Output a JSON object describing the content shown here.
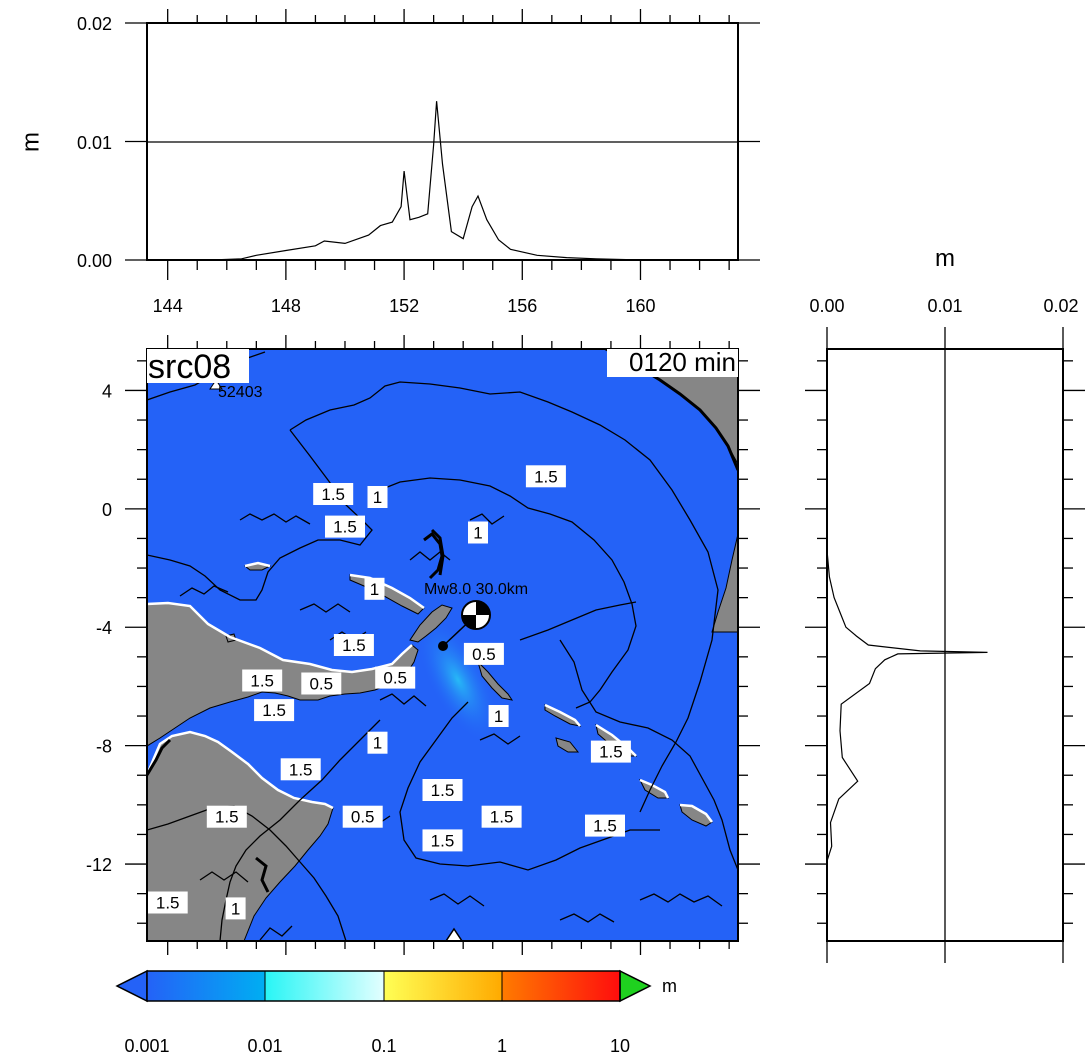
{
  "top_panel": {
    "ylabel": "m",
    "y_ticks": [
      "0.00",
      "0.01",
      "0.02"
    ],
    "ylim": [
      0,
      0.02
    ],
    "x_ticks": [
      "144",
      "148",
      "152",
      "156",
      "160"
    ],
    "xlim": [
      143.3,
      163.3
    ]
  },
  "right_panel": {
    "xlabel": "m",
    "x_ticks": [
      "0.00",
      "0.01",
      "0.02"
    ],
    "xlim": [
      0,
      0.02
    ]
  },
  "map": {
    "source_label": "src08",
    "time_label": "0120 min",
    "station_label": "52403",
    "epicenter_label": "Mw8.0  30.0km",
    "y_ticks": [
      "4",
      "0",
      "-4",
      "-8",
      "-12"
    ],
    "xlim": [
      143.3,
      163.3
    ],
    "ylim": [
      -14.6,
      5.4
    ],
    "ocean_color": "#2462f7",
    "land_color": "#868686",
    "contour_labels": [
      {
        "text": "1.5",
        "lon": 156.8,
        "lat": 1.1
      },
      {
        "text": "1.5",
        "lon": 149.6,
        "lat": 0.5
      },
      {
        "text": "1.5",
        "lon": 150.0,
        "lat": -0.6
      },
      {
        "text": "1",
        "lon": 151.1,
        "lat": 0.4
      },
      {
        "text": "1",
        "lon": 154.5,
        "lat": -0.8
      },
      {
        "text": "1",
        "lon": 151.0,
        "lat": -2.7
      },
      {
        "text": "1.5",
        "lon": 150.3,
        "lat": -4.6
      },
      {
        "text": "0.5",
        "lon": 154.7,
        "lat": -4.9
      },
      {
        "text": "1.5",
        "lon": 147.2,
        "lat": -5.8
      },
      {
        "text": "0.5",
        "lon": 149.2,
        "lat": -5.9
      },
      {
        "text": "0.5",
        "lon": 151.7,
        "lat": -5.7
      },
      {
        "text": "1.5",
        "lon": 147.6,
        "lat": -6.8
      },
      {
        "text": "1",
        "lon": 155.2,
        "lat": -7.0
      },
      {
        "text": "1.5",
        "lon": 159.0,
        "lat": -8.2
      },
      {
        "text": "1",
        "lon": 151.1,
        "lat": -7.9
      },
      {
        "text": "1.5",
        "lon": 148.5,
        "lat": -8.8
      },
      {
        "text": "1.5",
        "lon": 153.3,
        "lat": -9.5
      },
      {
        "text": "0.5",
        "lon": 150.6,
        "lat": -10.4
      },
      {
        "text": "1.5",
        "lon": 155.3,
        "lat": -10.4
      },
      {
        "text": "1.5",
        "lon": 146.0,
        "lat": -10.4
      },
      {
        "text": "1.5",
        "lon": 153.3,
        "lat": -11.2
      },
      {
        "text": "1.5",
        "lon": 158.8,
        "lat": -10.7
      },
      {
        "text": "1.5",
        "lon": 144.0,
        "lat": -13.3
      },
      {
        "text": "1",
        "lon": 146.3,
        "lat": -13.5
      }
    ]
  },
  "colorbar": {
    "unit": "m",
    "tick_labels": [
      "0.001",
      "0.01",
      "0.1",
      "1",
      "10"
    ],
    "segments": [
      {
        "from": "#2462f7",
        "to": "#00aef2"
      },
      {
        "from": "#28f5f5",
        "to": "#e3ffff"
      },
      {
        "from": "#ffff55",
        "to": "#ffaa00"
      },
      {
        "from": "#ff7b00",
        "to": "#ff0d0d"
      }
    ],
    "under_color": "#2462f7",
    "over_color": "#1fd11f"
  },
  "chart_data": {
    "type": "line",
    "top_series": {
      "x": [
        143.3,
        145.5,
        146.5,
        147.0,
        148.0,
        149.0,
        149.3,
        150.0,
        150.8,
        151.2,
        151.6,
        151.9,
        152.0,
        152.2,
        152.5,
        152.8,
        153.0,
        153.1,
        153.3,
        153.6,
        154.0,
        154.3,
        154.5,
        154.8,
        155.2,
        155.6,
        156.5,
        157.5,
        158.5,
        160.0,
        163.3
      ],
      "y": [
        0.0,
        0.0,
        0.0001,
        0.0004,
        0.0008,
        0.0012,
        0.0016,
        0.0014,
        0.0021,
        0.0029,
        0.0032,
        0.0045,
        0.0075,
        0.0034,
        0.0036,
        0.0039,
        0.0097,
        0.0134,
        0.0081,
        0.0024,
        0.0018,
        0.0045,
        0.0054,
        0.0034,
        0.0017,
        0.0009,
        0.0004,
        0.0002,
        0.0001,
        0.0,
        0.0
      ]
    },
    "right_series": {
      "lat": [
        5.4,
        -1.4,
        -2.3,
        -3.0,
        -3.5,
        -4.0,
        -4.3,
        -4.6,
        -4.8,
        -4.85,
        -4.9,
        -5.1,
        -5.4,
        -5.9,
        -6.6,
        -7.5,
        -8.4,
        -9.2,
        -9.8,
        -10.6,
        -11.4,
        -11.9,
        -14.6
      ],
      "y": [
        0.0,
        0.0,
        0.0002,
        0.0006,
        0.0011,
        0.0016,
        0.0025,
        0.0035,
        0.0079,
        0.0136,
        0.006,
        0.0049,
        0.0041,
        0.0036,
        0.0012,
        0.0011,
        0.0013,
        0.0026,
        0.001,
        0.0003,
        0.0004,
        0.0,
        0.0
      ]
    }
  }
}
